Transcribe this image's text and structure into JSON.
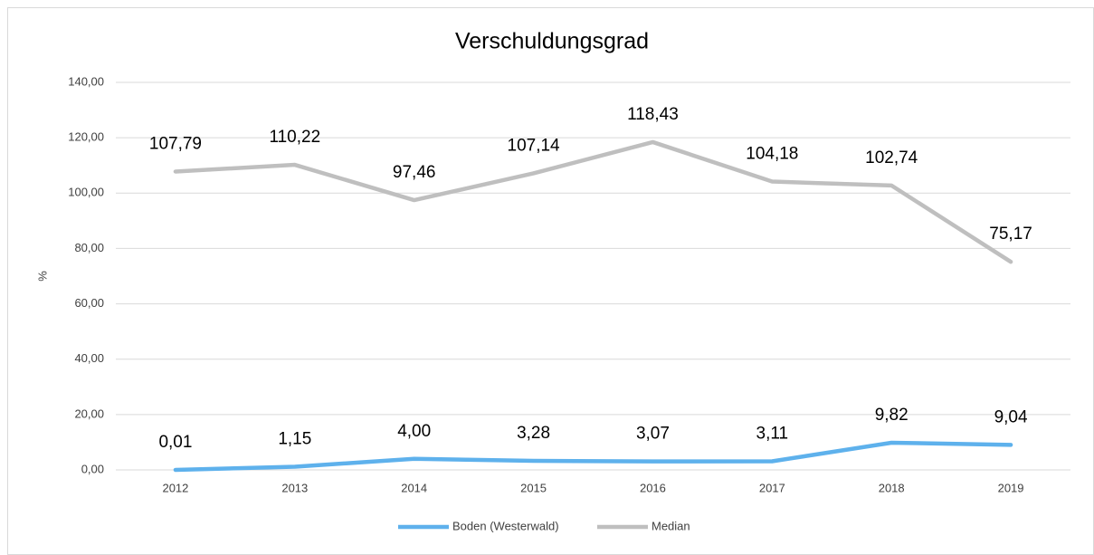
{
  "chart_data": {
    "type": "line",
    "title": "Verschuldungsgrad",
    "y_label": "%",
    "categories": [
      "2012",
      "2013",
      "2014",
      "2015",
      "2016",
      "2017",
      "2018",
      "2019"
    ],
    "series": [
      {
        "name": "Boden (Westerwald)",
        "color": "#5eb1ec",
        "values": [
          0.01,
          1.15,
          4.0,
          3.28,
          3.07,
          3.11,
          9.82,
          9.04
        ],
        "value_labels": [
          "0,01",
          "1,15",
          "4,00",
          "3,28",
          "3,07",
          "3,11",
          "9,82",
          "9,04"
        ]
      },
      {
        "name": "Median",
        "color": "#bfbfbf",
        "values": [
          107.79,
          110.22,
          97.46,
          107.14,
          118.43,
          104.18,
          102.74,
          75.17
        ],
        "value_labels": [
          "107,79",
          "110,22",
          "97,46",
          "107,14",
          "118,43",
          "104,18",
          "102,74",
          "75,17"
        ]
      }
    ],
    "ylim": [
      0,
      140
    ],
    "yticks": [
      {
        "value": 0,
        "label": "0,00"
      },
      {
        "value": 20,
        "label": "20,00"
      },
      {
        "value": 40,
        "label": "40,00"
      },
      {
        "value": 60,
        "label": "60,00"
      },
      {
        "value": 80,
        "label": "80,00"
      },
      {
        "value": 100,
        "label": "100,00"
      },
      {
        "value": 120,
        "label": "120,00"
      },
      {
        "value": 140,
        "label": "140,00"
      }
    ],
    "grid": true,
    "legend": "bottom"
  }
}
